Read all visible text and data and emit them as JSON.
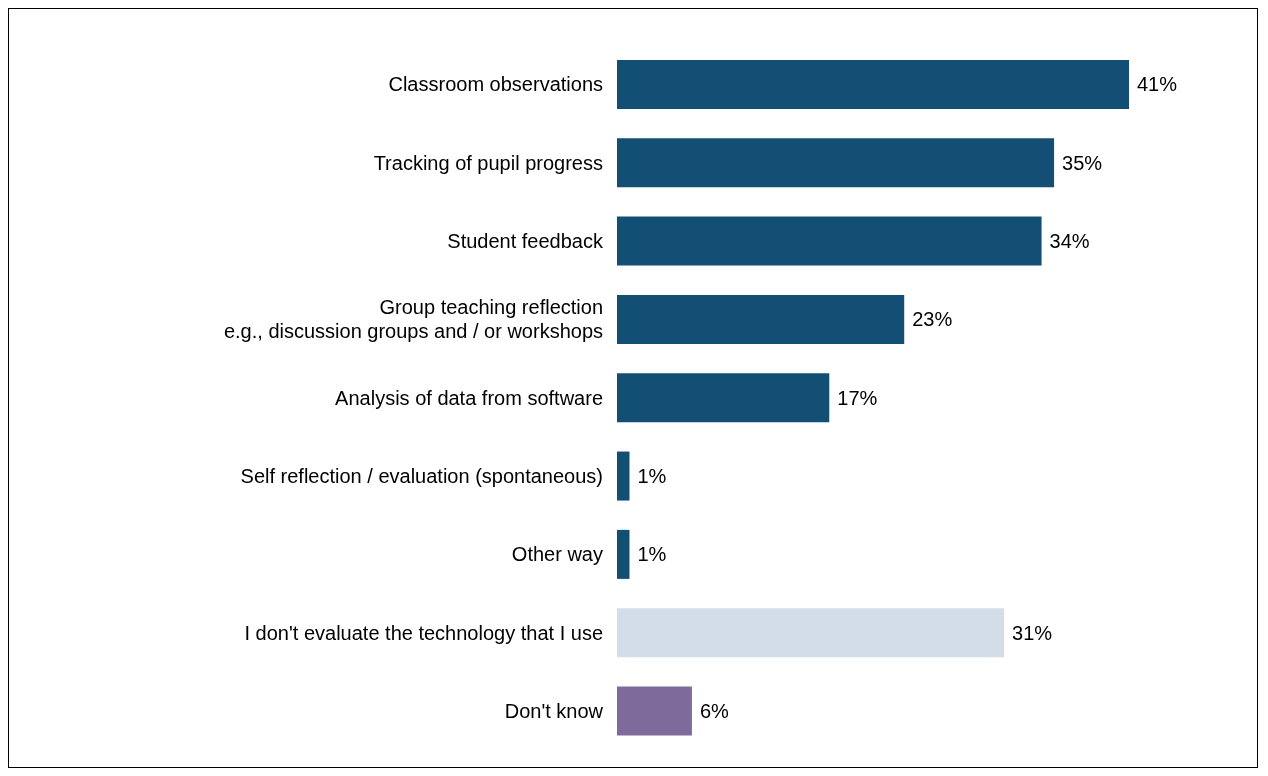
{
  "chart_data": {
    "type": "bar",
    "orientation": "horizontal",
    "categories": [
      "Classroom observations",
      "Tracking of pupil progress",
      "Student feedback",
      "Group teaching reflection\ne.g., discussion groups and / or workshops",
      "Analysis of data from software",
      "Self reflection / evaluation (spontaneous)",
      "Other way",
      "I don't evaluate the technology that I use",
      "Don't know"
    ],
    "values": [
      41,
      35,
      34,
      23,
      17,
      1,
      1,
      31,
      6
    ],
    "value_labels": [
      "41%",
      "35%",
      "34%",
      "23%",
      "17%",
      "1%",
      "1%",
      "31%",
      "6%"
    ],
    "colors": [
      "#134f74",
      "#134f74",
      "#134f74",
      "#134f74",
      "#134f74",
      "#134f74",
      "#134f74",
      "#d3dde7",
      "#7f6b9b"
    ],
    "tick_labels": "y",
    "grid": false,
    "legend": false
  }
}
